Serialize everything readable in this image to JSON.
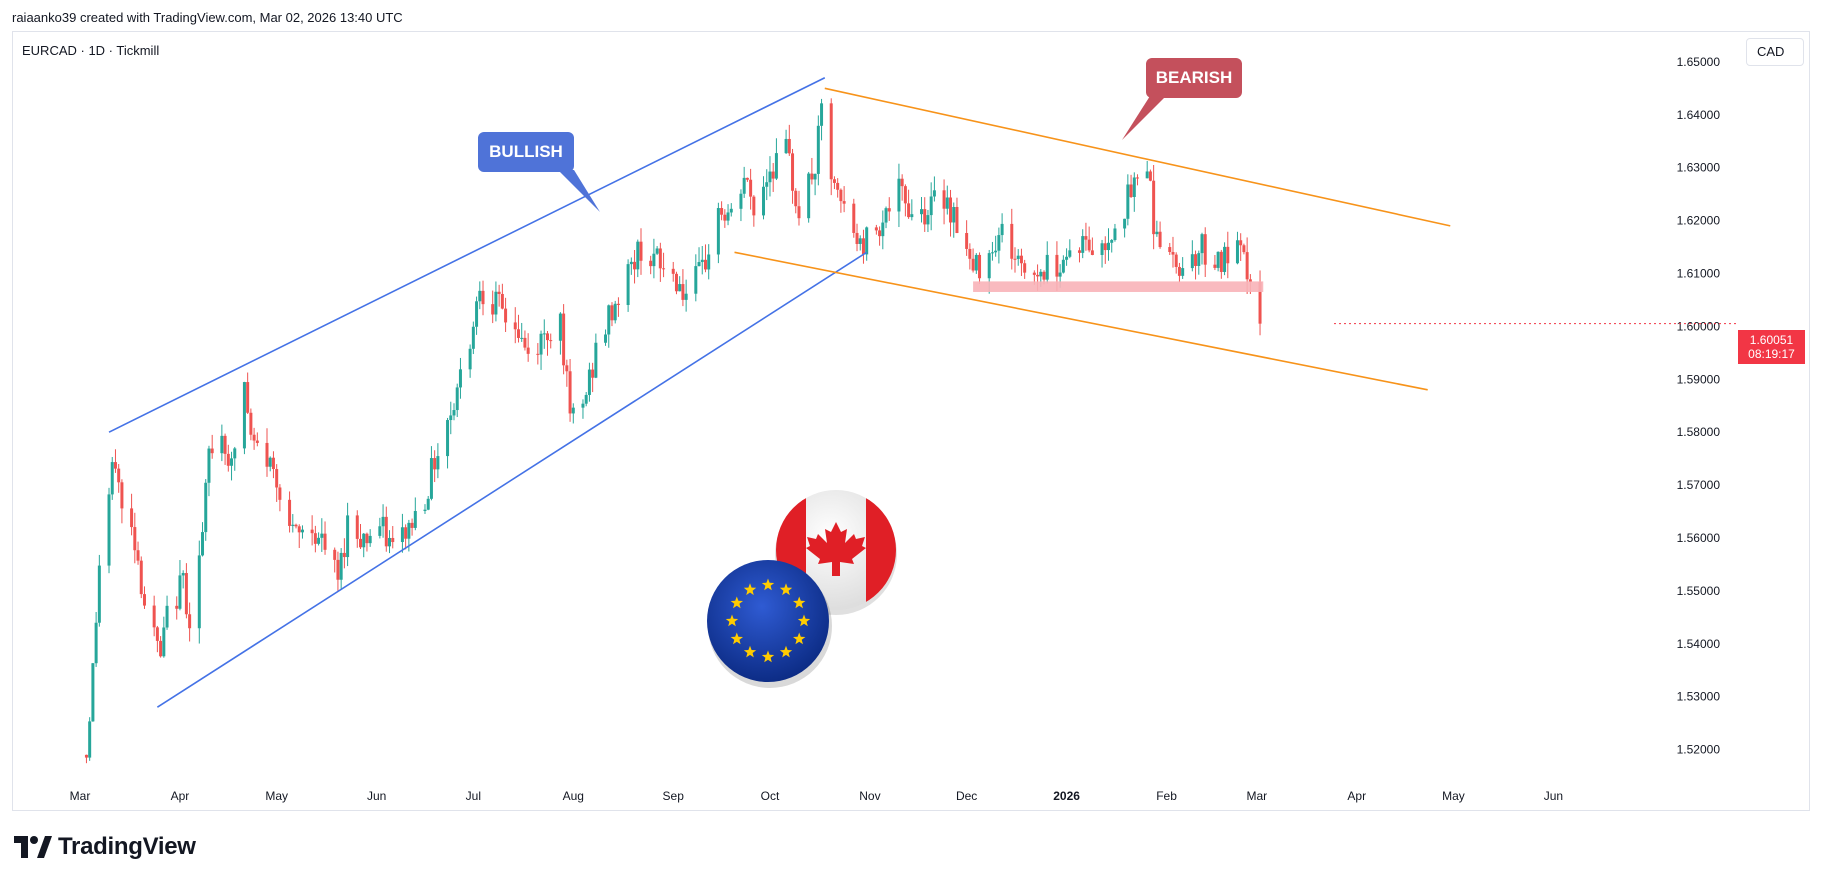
{
  "header": {
    "attribution": "raiaanko39 created with TradingView.com, Mar 02, 2026 13:40 UTC"
  },
  "symbol_label": "EURCAD · 1D · Tickmill",
  "currency_button": "CAD",
  "brand": {
    "logo_text": "TradingView"
  },
  "price_badge": {
    "price": "1.60051",
    "countdown": "08:19:17"
  },
  "annotations": {
    "bullish": "BULLISH",
    "bearish": "BEARISH"
  },
  "colors": {
    "up": "#26a69a",
    "down": "#ef5350",
    "bull_channel": "#4472e6",
    "bear_channel": "#f7931a",
    "support_zone": "#f8b2b8",
    "badge": "#f23645"
  },
  "chart_data": {
    "type": "candlestick",
    "symbol": "EURCAD",
    "interval": "1D",
    "broker": "Tickmill",
    "x_range": [
      "2025-03-01",
      "2026-06-08"
    ],
    "ylim": [
      1.515,
      1.653
    ],
    "y_ticks": [
      "1.52000",
      "1.53000",
      "1.54000",
      "1.55000",
      "1.56000",
      "1.57000",
      "1.58000",
      "1.59000",
      "1.60000",
      "1.61000",
      "1.62000",
      "1.63000",
      "1.64000",
      "1.65000"
    ],
    "x_ticks": [
      {
        "label": "Mar",
        "date": "2025-03-01",
        "bold": false
      },
      {
        "label": "Apr",
        "date": "2025-04-01",
        "bold": false
      },
      {
        "label": "May",
        "date": "2025-05-01",
        "bold": false
      },
      {
        "label": "Jun",
        "date": "2025-06-01",
        "bold": false
      },
      {
        "label": "Jul",
        "date": "2025-07-01",
        "bold": false
      },
      {
        "label": "Aug",
        "date": "2025-08-01",
        "bold": false
      },
      {
        "label": "Sep",
        "date": "2025-09-01",
        "bold": false
      },
      {
        "label": "Oct",
        "date": "2025-10-01",
        "bold": false
      },
      {
        "label": "Nov",
        "date": "2025-11-01",
        "bold": false
      },
      {
        "label": "Dec",
        "date": "2025-12-01",
        "bold": false
      },
      {
        "label": "2026",
        "date": "2026-01-01",
        "bold": true
      },
      {
        "label": "Feb",
        "date": "2026-02-01",
        "bold": false
      },
      {
        "label": "Mar",
        "date": "2026-03-01",
        "bold": false
      },
      {
        "label": "Apr",
        "date": "2026-04-01",
        "bold": false
      },
      {
        "label": "May",
        "date": "2026-05-01",
        "bold": false
      },
      {
        "label": "Jun",
        "date": "2026-06-01",
        "bold": false
      }
    ],
    "close_path": [
      [
        "2025-03-03",
        1.519
      ],
      [
        "2025-03-05",
        1.535
      ],
      [
        "2025-03-07",
        1.555
      ],
      [
        "2025-03-10",
        1.568
      ],
      [
        "2025-03-12",
        1.575
      ],
      [
        "2025-03-14",
        1.565
      ],
      [
        "2025-03-18",
        1.56
      ],
      [
        "2025-03-21",
        1.548
      ],
      [
        "2025-03-26",
        1.537
      ],
      [
        "2025-03-28",
        1.545
      ],
      [
        "2025-04-02",
        1.552
      ],
      [
        "2025-04-04",
        1.545
      ],
      [
        "2025-04-08",
        1.56
      ],
      [
        "2025-04-10",
        1.576
      ],
      [
        "2025-04-14",
        1.58
      ],
      [
        "2025-04-17",
        1.573
      ],
      [
        "2025-04-21",
        1.589
      ],
      [
        "2025-04-23",
        1.578
      ],
      [
        "2025-04-28",
        1.575
      ],
      [
        "2025-05-02",
        1.57
      ],
      [
        "2025-05-06",
        1.56
      ],
      [
        "2025-05-12",
        1.562
      ],
      [
        "2025-05-16",
        1.558
      ],
      [
        "2025-05-20",
        1.552
      ],
      [
        "2025-05-23",
        1.563
      ],
      [
        "2025-05-28",
        1.56
      ],
      [
        "2025-06-02",
        1.562
      ],
      [
        "2025-06-06",
        1.558
      ],
      [
        "2025-06-11",
        1.562
      ],
      [
        "2025-06-16",
        1.568
      ],
      [
        "2025-06-20",
        1.577
      ],
      [
        "2025-06-25",
        1.586
      ],
      [
        "2025-06-30",
        1.598
      ],
      [
        "2025-07-03",
        1.608
      ],
      [
        "2025-07-08",
        1.604
      ],
      [
        "2025-07-14",
        1.6
      ],
      [
        "2025-07-18",
        1.594
      ],
      [
        "2025-07-23",
        1.598
      ],
      [
        "2025-07-28",
        1.602
      ],
      [
        "2025-07-31",
        1.582
      ],
      [
        "2025-08-04",
        1.585
      ],
      [
        "2025-08-08",
        1.595
      ],
      [
        "2025-08-13",
        1.603
      ],
      [
        "2025-08-18",
        1.61
      ],
      [
        "2025-08-22",
        1.615
      ],
      [
        "2025-08-27",
        1.612
      ],
      [
        "2025-09-02",
        1.609
      ],
      [
        "2025-09-05",
        1.606
      ],
      [
        "2025-09-10",
        1.61
      ],
      [
        "2025-09-15",
        1.622
      ],
      [
        "2025-09-19",
        1.62
      ],
      [
        "2025-09-23",
        1.628
      ],
      [
        "2025-09-26",
        1.622
      ],
      [
        "2025-10-01",
        1.63
      ],
      [
        "2025-10-06",
        1.633
      ],
      [
        "2025-10-10",
        1.622
      ],
      [
        "2025-10-15",
        1.63
      ],
      [
        "2025-10-17",
        1.64
      ],
      [
        "2025-10-21",
        1.625
      ],
      [
        "2025-10-24",
        1.622
      ],
      [
        "2025-10-29",
        1.615
      ],
      [
        "2025-11-04",
        1.62
      ],
      [
        "2025-11-10",
        1.625
      ],
      [
        "2025-11-14",
        1.622
      ],
      [
        "2025-11-19",
        1.622
      ],
      [
        "2025-11-24",
        1.625
      ],
      [
        "2025-11-28",
        1.62
      ],
      [
        "2025-12-03",
        1.61
      ],
      [
        "2025-12-08",
        1.615
      ],
      [
        "2025-12-12",
        1.618
      ],
      [
        "2025-12-17",
        1.612
      ],
      [
        "2025-12-22",
        1.61
      ],
      [
        "2025-12-29",
        1.612
      ],
      [
        "2026-01-05",
        1.616
      ],
      [
        "2026-01-12",
        1.614
      ],
      [
        "2026-01-16",
        1.62
      ],
      [
        "2026-01-21",
        1.625
      ],
      [
        "2026-01-26",
        1.632
      ],
      [
        "2026-01-28",
        1.62
      ],
      [
        "2026-02-02",
        1.612
      ],
      [
        "2026-02-06",
        1.612
      ],
      [
        "2026-02-12",
        1.615
      ],
      [
        "2026-02-18",
        1.612
      ],
      [
        "2026-02-23",
        1.614
      ],
      [
        "2026-02-27",
        1.609
      ],
      [
        "2026-03-02",
        1.6005
      ]
    ],
    "series": [
      {
        "name": "",
        "type": "trendline",
        "color": "bull_channel",
        "points": [
          [
            "2025-03-10",
            1.58
          ],
          [
            "2025-10-18",
            1.647
          ]
        ]
      },
      {
        "name": "",
        "type": "trendline",
        "color": "bull_channel",
        "points": [
          [
            "2025-03-25",
            1.528
          ],
          [
            "2025-10-31",
            1.614
          ]
        ]
      },
      {
        "name": "",
        "type": "trendline",
        "color": "bear_channel",
        "points": [
          [
            "2025-10-18",
            1.645
          ],
          [
            "2026-04-30",
            1.619
          ]
        ]
      },
      {
        "name": "",
        "type": "trendline",
        "color": "bear_channel",
        "points": [
          [
            "2025-09-20",
            1.614
          ],
          [
            "2026-04-23",
            1.588
          ]
        ]
      }
    ],
    "support_zone": {
      "x": [
        "2025-12-03",
        "2026-03-03"
      ],
      "y": [
        1.6065,
        1.6085
      ]
    },
    "last_price": 1.60051
  }
}
